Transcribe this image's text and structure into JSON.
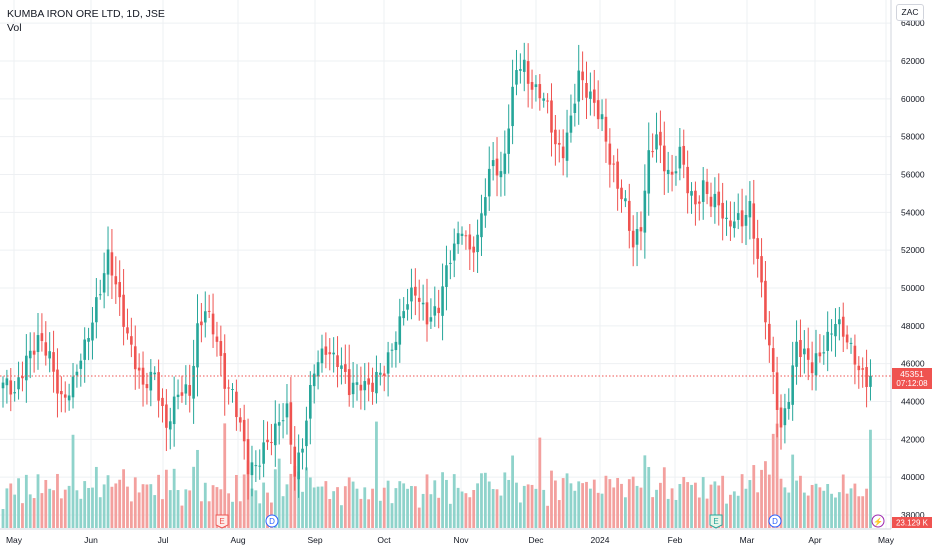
{
  "header": {
    "symbol_title": "KUMBA IRON ORE LTD, 1D, JSE",
    "volume_label": "Vol"
  },
  "currency_badge": "ZAC",
  "price_label": {
    "price": "45351",
    "countdown": "07:12:08"
  },
  "volume_label": "23.129 K",
  "colors": {
    "up": "#26a69a",
    "down": "#ef5350",
    "grid": "#eef0f3",
    "axis_text": "#131722"
  },
  "chart_data": {
    "type": "candlestick",
    "ylim": [
      37000,
      64200
    ],
    "y_ticks": [
      38000,
      40000,
      42000,
      44000,
      46000,
      48000,
      50000,
      52000,
      54000,
      56000,
      58000,
      60000,
      62000,
      64000
    ],
    "x_ticks": [
      "May",
      "Jun",
      "Jul",
      "Aug",
      "Sep",
      "Oct",
      "Nov",
      "Dec",
      "2024",
      "Feb",
      "Mar",
      "Apr",
      "May"
    ],
    "last_price": 45351,
    "close_points": [
      [
        0,
        45000
      ],
      [
        3,
        44200
      ],
      [
        6,
        46500
      ],
      [
        9,
        47200
      ],
      [
        12,
        46200
      ],
      [
        15,
        44300
      ],
      [
        18,
        44800
      ],
      [
        21,
        46800
      ],
      [
        24,
        49400
      ],
      [
        27,
        51500
      ],
      [
        30,
        49200
      ],
      [
        33,
        47000
      ],
      [
        36,
        44500
      ],
      [
        39,
        45500
      ],
      [
        42,
        42800
      ],
      [
        45,
        44200
      ],
      [
        48,
        44600
      ],
      [
        50,
        48000
      ],
      [
        52,
        48800
      ],
      [
        55,
        47000
      ],
      [
        57,
        45200
      ],
      [
        59,
        44600
      ],
      [
        61,
        42600
      ],
      [
        63,
        40300
      ],
      [
        65,
        40600
      ],
      [
        67,
        41800
      ],
      [
        70,
        42300
      ],
      [
        73,
        43500
      ],
      [
        75,
        40500
      ],
      [
        77,
        41800
      ],
      [
        80,
        45500
      ],
      [
        83,
        47000
      ],
      [
        86,
        46200
      ],
      [
        89,
        44500
      ],
      [
        92,
        45200
      ],
      [
        95,
        44800
      ],
      [
        98,
        45500
      ],
      [
        100,
        47000
      ],
      [
        103,
        49000
      ],
      [
        106,
        49600
      ],
      [
        109,
        48600
      ],
      [
        112,
        49000
      ],
      [
        115,
        51500
      ],
      [
        118,
        53500
      ],
      [
        120,
        52000
      ],
      [
        122,
        52300
      ],
      [
        124,
        55000
      ],
      [
        126,
        57000
      ],
      [
        128,
        56000
      ],
      [
        130,
        58500
      ],
      [
        132,
        61500
      ],
      [
        134,
        61800
      ],
      [
        136,
        60800
      ],
      [
        138,
        60300
      ],
      [
        140,
        59300
      ],
      [
        142,
        57500
      ],
      [
        144,
        57500
      ],
      [
        146,
        59000
      ],
      [
        148,
        61000
      ],
      [
        150,
        60300
      ],
      [
        152,
        60000
      ],
      [
        154,
        59000
      ],
      [
        156,
        56600
      ],
      [
        158,
        55200
      ],
      [
        160,
        54500
      ],
      [
        162,
        52500
      ],
      [
        164,
        53200
      ],
      [
        166,
        56700
      ],
      [
        168,
        58100
      ],
      [
        170,
        56800
      ],
      [
        172,
        55800
      ],
      [
        174,
        57000
      ],
      [
        176,
        55300
      ],
      [
        178,
        54600
      ],
      [
        180,
        55500
      ],
      [
        182,
        54400
      ],
      [
        184,
        54300
      ],
      [
        186,
        53500
      ],
      [
        188,
        53900
      ],
      [
        190,
        53400
      ],
      [
        192,
        54000
      ],
      [
        194,
        51600
      ],
      [
        196,
        48800
      ],
      [
        198,
        45300
      ],
      [
        200,
        42200
      ],
      [
        202,
        44300
      ],
      [
        204,
        47300
      ],
      [
        206,
        46600
      ],
      [
        208,
        45600
      ],
      [
        210,
        46300
      ],
      [
        212,
        47500
      ],
      [
        214,
        48500
      ],
      [
        216,
        47500
      ],
      [
        218,
        46500
      ],
      [
        220,
        45800
      ],
      [
        222,
        45351
      ]
    ],
    "markers": [
      {
        "label": "E",
        "type": "earnings",
        "at": "Aug"
      },
      {
        "label": "D",
        "type": "dividend",
        "at": "Aug"
      },
      {
        "label": "E",
        "type": "earnings",
        "at": "Feb"
      },
      {
        "label": "D",
        "type": "dividend",
        "at": "Mar"
      },
      {
        "label": "⚡",
        "type": "event",
        "at": "May"
      }
    ]
  }
}
